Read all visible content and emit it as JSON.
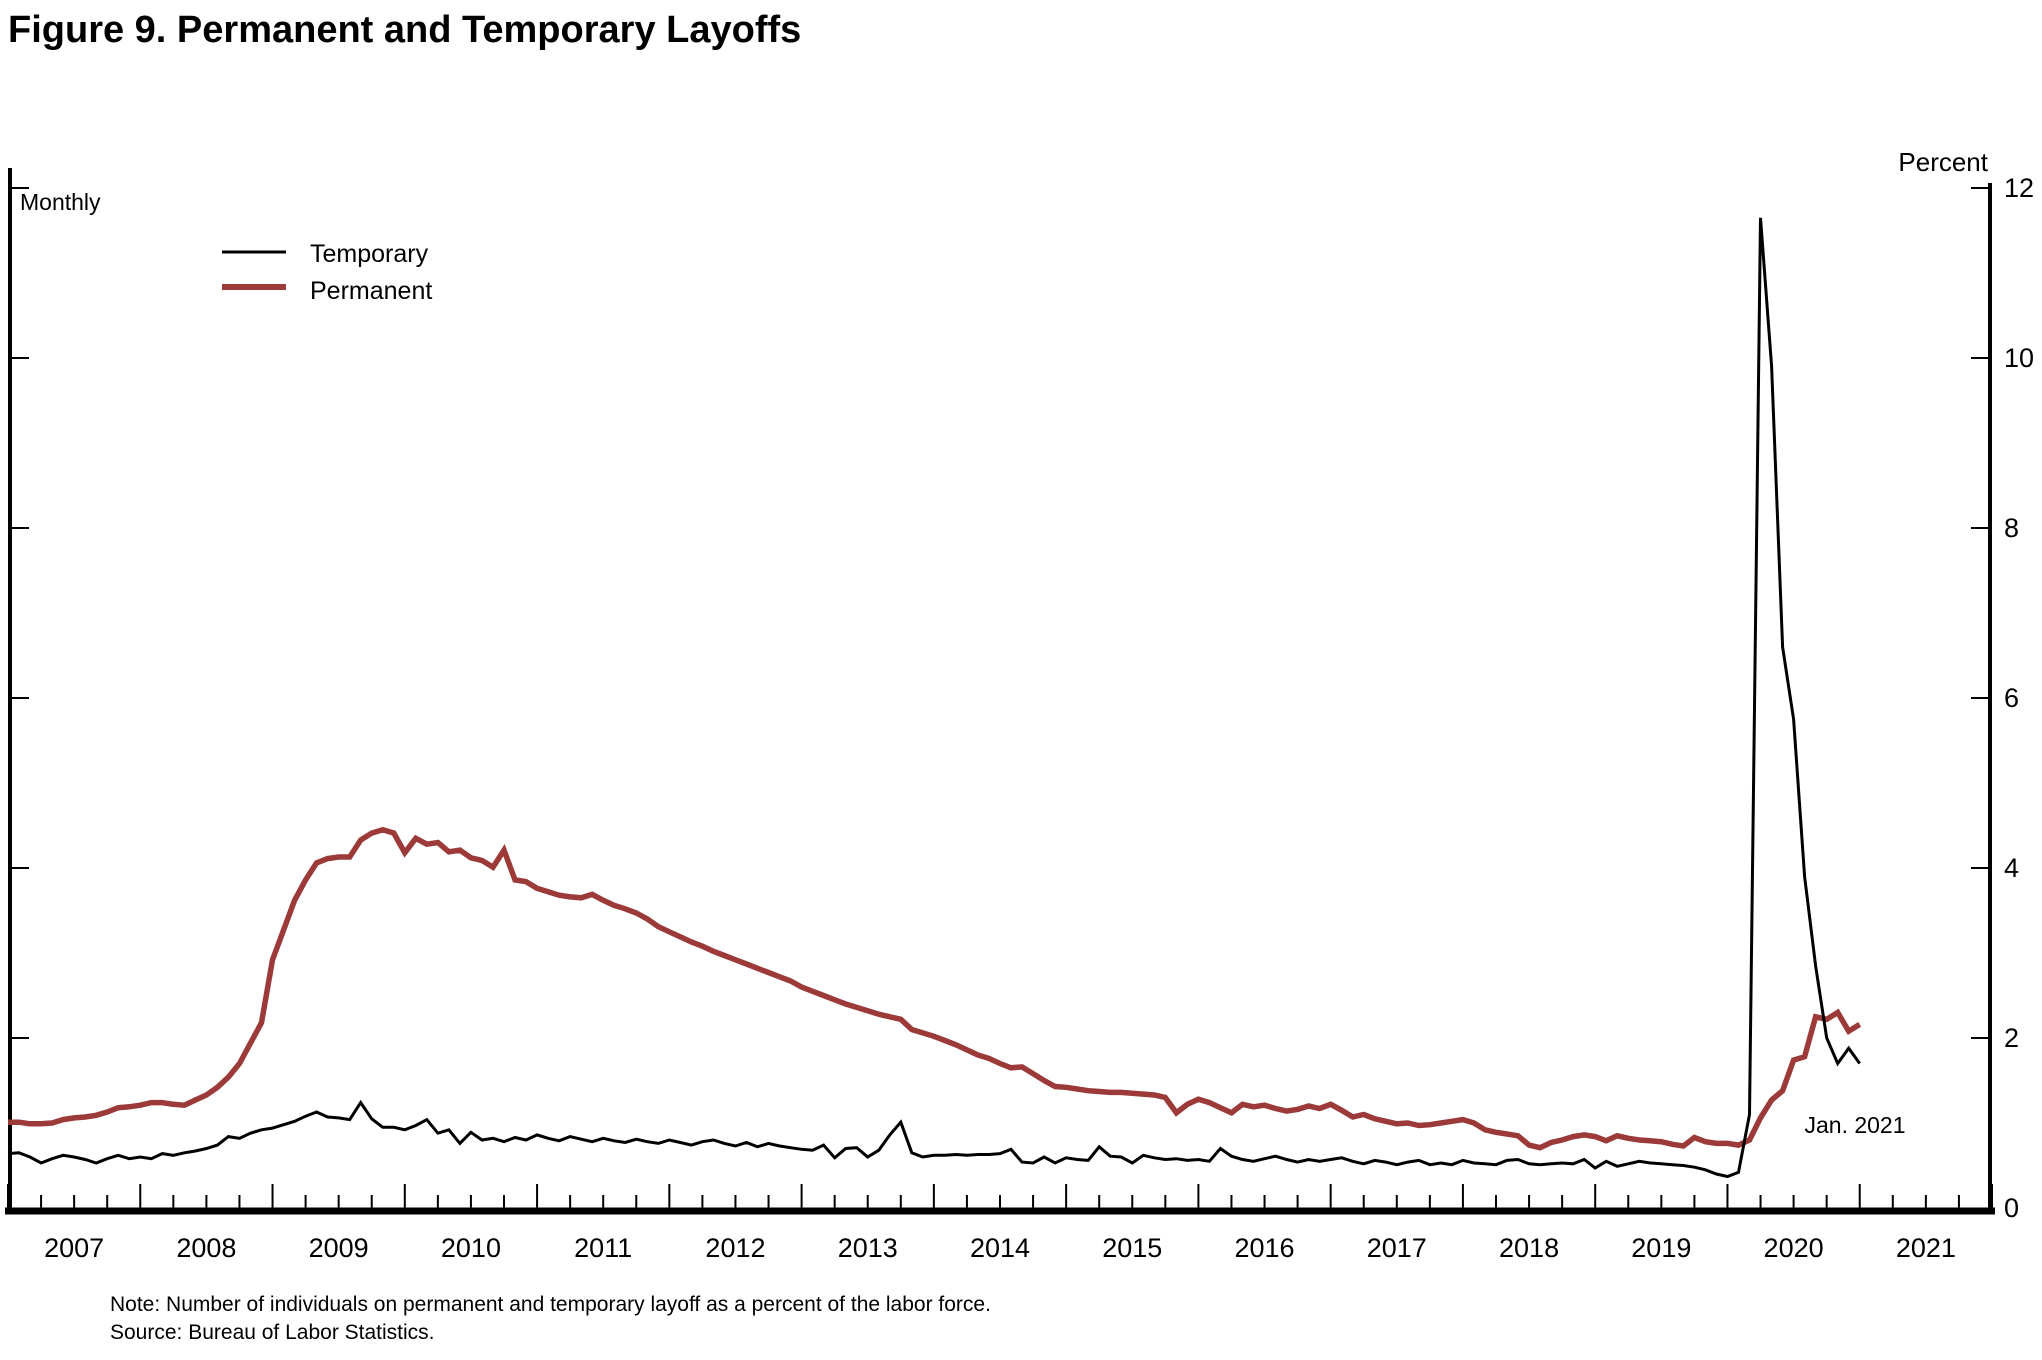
{
  "figure": {
    "title": "Figure 9. Permanent and Temporary Layoffs",
    "frequency_label": "Monthly",
    "unit_label": "Percent",
    "annotation": "Jan. 2021",
    "note_line1": "Note: Number of individuals on permanent and temporary layoff as a percent of the labor force.",
    "note_line2": "Source: Bureau of Labor Statistics."
  },
  "chart_data": {
    "type": "line",
    "title": "Figure 9. Permanent and Temporary Layoffs",
    "xlabel": "",
    "ylabel": "Percent",
    "ylim": [
      0,
      12
    ],
    "y_ticks": [
      0,
      2,
      4,
      6,
      8,
      10,
      12
    ],
    "x_start": "2007-01",
    "x_end": "2021-01",
    "x_axis_years": [
      2007,
      2008,
      2009,
      2010,
      2011,
      2012,
      2013,
      2014,
      2015,
      2016,
      2017,
      2018,
      2019,
      2020,
      2021
    ],
    "grid": false,
    "legend_position": "upper-left",
    "legend": [
      {
        "name": "Temporary",
        "color": "#000000"
      },
      {
        "name": "Permanent",
        "color": "#9c3a3a"
      }
    ],
    "annotation": {
      "text": "Jan. 2021",
      "x": "2020-12",
      "y": 1.0
    },
    "series": [
      {
        "name": "Temporary",
        "color": "#000000",
        "stroke_width": 3,
        "values": [
          0.64,
          0.65,
          0.6,
          0.53,
          0.58,
          0.62,
          0.6,
          0.57,
          0.53,
          0.58,
          0.62,
          0.58,
          0.6,
          0.58,
          0.64,
          0.62,
          0.65,
          0.67,
          0.7,
          0.74,
          0.84,
          0.82,
          0.88,
          0.92,
          0.94,
          0.98,
          1.02,
          1.08,
          1.13,
          1.07,
          1.06,
          1.04,
          1.24,
          1.05,
          0.95,
          0.95,
          0.92,
          0.97,
          1.04,
          0.88,
          0.92,
          0.76,
          0.89,
          0.8,
          0.82,
          0.78,
          0.83,
          0.8,
          0.86,
          0.82,
          0.79,
          0.84,
          0.81,
          0.78,
          0.82,
          0.79,
          0.77,
          0.81,
          0.78,
          0.76,
          0.8,
          0.77,
          0.74,
          0.78,
          0.8,
          0.76,
          0.73,
          0.77,
          0.72,
          0.76,
          0.73,
          0.71,
          0.69,
          0.68,
          0.74,
          0.59,
          0.7,
          0.71,
          0.6,
          0.68,
          0.86,
          1.01,
          0.65,
          0.6,
          0.62,
          0.62,
          0.63,
          0.62,
          0.63,
          0.63,
          0.64,
          0.69,
          0.54,
          0.53,
          0.6,
          0.53,
          0.59,
          0.57,
          0.56,
          0.72,
          0.61,
          0.6,
          0.53,
          0.62,
          0.59,
          0.57,
          0.58,
          0.56,
          0.57,
          0.55,
          0.7,
          0.61,
          0.57,
          0.55,
          0.58,
          0.61,
          0.57,
          0.54,
          0.57,
          0.55,
          0.57,
          0.59,
          0.55,
          0.52,
          0.56,
          0.54,
          0.51,
          0.54,
          0.56,
          0.51,
          0.53,
          0.51,
          0.56,
          0.53,
          0.52,
          0.51,
          0.56,
          0.57,
          0.52,
          0.51,
          0.52,
          0.53,
          0.52,
          0.57,
          0.47,
          0.55,
          0.49,
          0.52,
          0.55,
          0.53,
          0.52,
          0.51,
          0.5,
          0.48,
          0.45,
          0.4,
          0.37,
          0.42,
          1.1,
          11.65,
          9.9,
          6.6,
          5.75,
          3.9,
          2.85,
          2.0,
          1.7,
          1.88,
          1.7
        ]
      },
      {
        "name": "Permanent",
        "color": "#9c3a3a",
        "stroke_width": 5.5,
        "values": [
          1.01,
          1.01,
          0.99,
          0.99,
          1.0,
          1.04,
          1.06,
          1.07,
          1.09,
          1.13,
          1.18,
          1.19,
          1.21,
          1.24,
          1.24,
          1.22,
          1.21,
          1.27,
          1.33,
          1.42,
          1.54,
          1.7,
          1.94,
          2.18,
          2.92,
          3.27,
          3.62,
          3.86,
          4.06,
          4.11,
          4.13,
          4.13,
          4.33,
          4.41,
          4.45,
          4.41,
          4.18,
          4.35,
          4.28,
          4.3,
          4.19,
          4.21,
          4.12,
          4.09,
          4.01,
          4.21,
          3.86,
          3.84,
          3.76,
          3.72,
          3.68,
          3.66,
          3.65,
          3.69,
          3.62,
          3.56,
          3.52,
          3.47,
          3.4,
          3.31,
          3.25,
          3.19,
          3.13,
          3.08,
          3.02,
          2.97,
          2.92,
          2.87,
          2.82,
          2.77,
          2.72,
          2.67,
          2.6,
          2.55,
          2.5,
          2.45,
          2.4,
          2.36,
          2.32,
          2.28,
          2.25,
          2.22,
          2.1,
          2.06,
          2.02,
          1.97,
          1.92,
          1.86,
          1.8,
          1.76,
          1.7,
          1.65,
          1.66,
          1.58,
          1.5,
          1.43,
          1.42,
          1.4,
          1.38,
          1.37,
          1.36,
          1.36,
          1.35,
          1.34,
          1.33,
          1.3,
          1.12,
          1.22,
          1.28,
          1.24,
          1.18,
          1.12,
          1.22,
          1.19,
          1.21,
          1.17,
          1.14,
          1.16,
          1.2,
          1.17,
          1.22,
          1.15,
          1.07,
          1.1,
          1.05,
          1.02,
          0.99,
          1.0,
          0.97,
          0.98,
          1.0,
          1.02,
          1.04,
          1.0,
          0.92,
          0.89,
          0.87,
          0.85,
          0.74,
          0.71,
          0.77,
          0.8,
          0.84,
          0.86,
          0.84,
          0.79,
          0.85,
          0.82,
          0.8,
          0.79,
          0.78,
          0.75,
          0.73,
          0.83,
          0.78,
          0.76,
          0.76,
          0.74,
          0.8,
          1.06,
          1.27,
          1.38,
          1.74,
          1.78,
          2.25,
          2.22,
          2.3,
          2.08,
          2.16
        ]
      }
    ]
  }
}
